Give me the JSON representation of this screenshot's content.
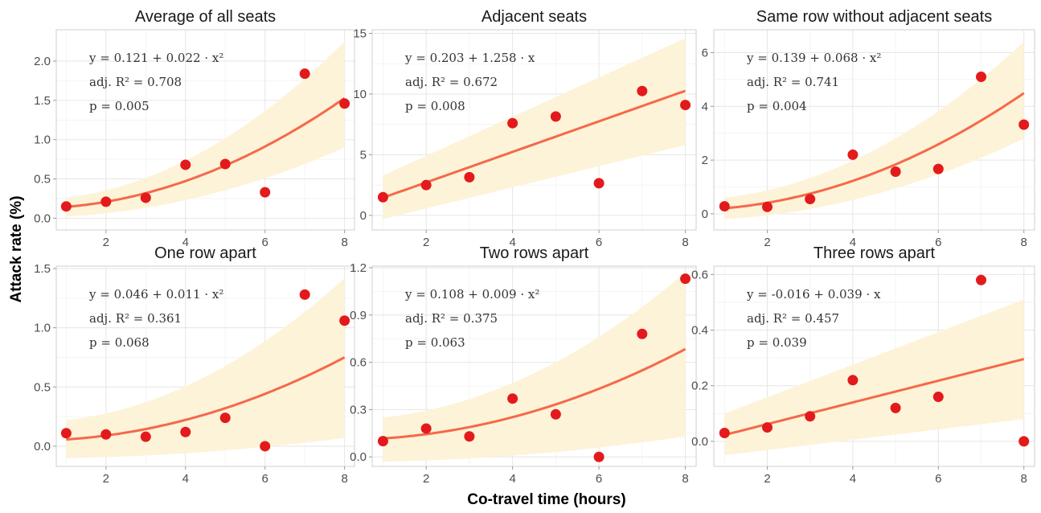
{
  "figure": {
    "ylabel": "Attack rate (%)",
    "xlabel": "Co-travel time (hours)"
  },
  "colors": {
    "points": "#e31a1c",
    "fit_line": "#f4694a",
    "ci_band": "#fdf3d8",
    "grid": "#e6e6e6",
    "panel_border": "#cfcfcf"
  },
  "chart_data": [
    {
      "type": "scatter",
      "title": "Average of all seats",
      "x": [
        1,
        2,
        3,
        4,
        5,
        6,
        7,
        8
      ],
      "y": [
        0.15,
        0.21,
        0.26,
        0.68,
        0.69,
        0.33,
        1.84,
        1.46
      ],
      "fit": {
        "model": "quadratic",
        "intercept": 0.121,
        "slope": 0.022,
        "ci_low_x1": 0.02,
        "ci_high_x1": 0.26,
        "ci_low_x8": 0.9,
        "ci_high_x8": 2.25
      },
      "annotation": {
        "equation": "y = 0.121 + 0.022 · x²",
        "r2": "adj. R² = 0.708",
        "p": "p = 0.005"
      },
      "xlim": [
        0.75,
        8.25
      ],
      "ylim": [
        -0.15,
        2.4
      ],
      "xticks": [
        2,
        4,
        6,
        8
      ],
      "yticks": [
        0,
        0.5,
        1,
        1.5,
        2
      ],
      "yticklabels": [
        "0.0",
        "0.5",
        "1.0",
        "1.5",
        "2.0"
      ]
    },
    {
      "type": "scatter",
      "title": "Adjacent seats",
      "x": [
        1,
        2,
        3,
        4,
        5,
        6,
        7,
        8
      ],
      "y": [
        1.5,
        2.5,
        3.15,
        7.6,
        8.15,
        2.65,
        10.25,
        9.1
      ],
      "fit": {
        "model": "linear",
        "intercept": 0.203,
        "slope": 1.258,
        "ci_low_x1": -0.3,
        "ci_high_x1": 3.3,
        "ci_low_x8": 5.8,
        "ci_high_x8": 14.6
      },
      "annotation": {
        "equation": "y = 0.203 + 1.258 · x",
        "r2": "adj. R² = 0.672",
        "p": "p = 0.008"
      },
      "xlim": [
        0.75,
        8.25
      ],
      "ylim": [
        -1.2,
        15.3
      ],
      "xticks": [
        2,
        4,
        6,
        8
      ],
      "yticks": [
        0,
        5,
        10,
        15
      ],
      "yticklabels": [
        "0",
        "5",
        "10",
        "15"
      ]
    },
    {
      "type": "scatter",
      "title": "Same row without adjacent seats",
      "x": [
        1,
        2,
        3,
        4,
        5,
        6,
        7,
        8
      ],
      "y": [
        0.28,
        0.26,
        0.55,
        2.2,
        1.57,
        1.67,
        5.1,
        3.32
      ],
      "fit": {
        "model": "quadratic",
        "intercept": 0.139,
        "slope": 0.068,
        "ci_low_x1": -0.2,
        "ci_high_x1": 0.6,
        "ci_low_x8": 2.8,
        "ci_high_x8": 6.4
      },
      "annotation": {
        "equation": "y = 0.139 + 0.068 · x²",
        "r2": "adj. R² = 0.741",
        "p": "p = 0.004"
      },
      "xlim": [
        0.75,
        8.25
      ],
      "ylim": [
        -0.6,
        6.85
      ],
      "xticks": [
        2,
        4,
        6,
        8
      ],
      "yticks": [
        0,
        2,
        4,
        6
      ],
      "yticklabels": [
        "0",
        "2",
        "4",
        "6"
      ]
    },
    {
      "type": "scatter",
      "title": "One row apart",
      "x": [
        1,
        2,
        3,
        4,
        5,
        6,
        7,
        8
      ],
      "y": [
        0.11,
        0.1,
        0.08,
        0.12,
        0.24,
        0.0,
        1.28,
        1.06
      ],
      "fit": {
        "model": "quadratic",
        "intercept": 0.046,
        "slope": 0.011,
        "ci_low_x1": -0.1,
        "ci_high_x1": 0.22,
        "ci_low_x8": 0.07,
        "ci_high_x8": 1.42
      },
      "annotation": {
        "equation": "y = 0.046 + 0.011 · x²",
        "r2": "adj. R² = 0.361",
        "p": "p = 0.068"
      },
      "xlim": [
        0.75,
        8.25
      ],
      "ylim": [
        -0.17,
        1.52
      ],
      "xticks": [
        2,
        4,
        6,
        8
      ],
      "yticks": [
        0,
        0.5,
        1,
        1.5
      ],
      "yticklabels": [
        "0.0",
        "0.5",
        "1.0",
        "1.5"
      ]
    },
    {
      "type": "scatter",
      "title": "Two rows apart",
      "x": [
        1,
        2,
        3,
        4,
        5,
        6,
        7,
        8
      ],
      "y": [
        0.1,
        0.18,
        0.13,
        0.37,
        0.27,
        0.0,
        0.78,
        1.13
      ],
      "fit": {
        "model": "quadratic",
        "intercept": 0.108,
        "slope": 0.009,
        "ci_low_x1": -0.03,
        "ci_high_x1": 0.25,
        "ci_low_x8": 0.13,
        "ci_high_x8": 1.17
      },
      "annotation": {
        "equation": "y = 0.108 + 0.009 · x²",
        "r2": "adj. R² = 0.375",
        "p": "p = 0.063"
      },
      "xlim": [
        0.75,
        8.25
      ],
      "ylim": [
        -0.06,
        1.21
      ],
      "xticks": [
        2,
        4,
        6,
        8
      ],
      "yticks": [
        0,
        0.3,
        0.6,
        0.9,
        1.2
      ],
      "yticklabels": [
        "0.0",
        "0.3",
        "0.6",
        "0.9",
        "1.2"
      ]
    },
    {
      "type": "scatter",
      "title": "Three rows apart",
      "x": [
        1,
        2,
        3,
        4,
        5,
        6,
        7,
        8
      ],
      "y": [
        0.03,
        0.05,
        0.09,
        0.22,
        0.12,
        0.16,
        0.58,
        0.0
      ],
      "fit": {
        "model": "linear",
        "intercept": -0.016,
        "slope": 0.039,
        "ci_low_x1": -0.05,
        "ci_high_x1": 0.1,
        "ci_low_x8": 0.08,
        "ci_high_x8": 0.51
      },
      "annotation": {
        "equation": "y = -0.016 + 0.039 · x",
        "r2": "adj. R² = 0.457",
        "p": "p = 0.039"
      },
      "xlim": [
        0.75,
        8.25
      ],
      "ylim": [
        -0.09,
        0.63
      ],
      "xticks": [
        2,
        4,
        6,
        8
      ],
      "yticks": [
        0,
        0.2,
        0.4,
        0.6
      ],
      "yticklabels": [
        "0.0",
        "0.2",
        "0.4",
        "0.6"
      ]
    }
  ]
}
